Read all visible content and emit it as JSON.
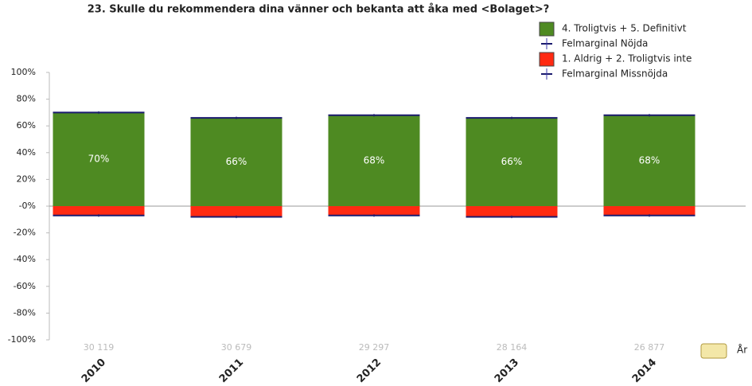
{
  "chart_data": {
    "type": "bar",
    "title": "23. Skulle du rekommendera dina vänner och bekanta att åka med <Bolaget>?",
    "categories": [
      "2010",
      "2011",
      "2012",
      "2013",
      "2014"
    ],
    "sample_sizes": [
      "30 119",
      "30 679",
      "29 297",
      "28 164",
      "26 877"
    ],
    "x_label": "År",
    "series": [
      {
        "name": "4. Troligtvis + 5. Definitivt",
        "color": "#4e8a22",
        "values": [
          70,
          66,
          68,
          66,
          68
        ],
        "value_labels": [
          "70%",
          "66%",
          "68%",
          "66%",
          "68%"
        ],
        "error_name": "Felmarginal Nöjda",
        "error": [
          1,
          1,
          1,
          1,
          1
        ]
      },
      {
        "name": "1. Aldrig + 2. Troligtvis inte",
        "color": "#ff2a12",
        "values": [
          -7,
          -8,
          -7,
          -8,
          -7
        ],
        "error_name": "Felmarginal Missnöjda",
        "error": [
          1,
          1,
          1,
          1,
          1
        ]
      }
    ],
    "error_color": "#1a1a6e",
    "ylim": [
      -100,
      100
    ],
    "yticks": [
      {
        "value": 100,
        "label": "100%"
      },
      {
        "value": 80,
        "label": "80%"
      },
      {
        "value": 60,
        "label": "60%"
      },
      {
        "value": 40,
        "label": "40%"
      },
      {
        "value": 20,
        "label": "20%"
      },
      {
        "value": 0,
        "label": "-0%"
      },
      {
        "value": -20,
        "label": "-20%"
      },
      {
        "value": -40,
        "label": "-40%"
      },
      {
        "value": -60,
        "label": "-60%"
      },
      {
        "value": -80,
        "label": "-80%"
      },
      {
        "value": -100,
        "label": "-100%"
      }
    ],
    "grid": false
  }
}
